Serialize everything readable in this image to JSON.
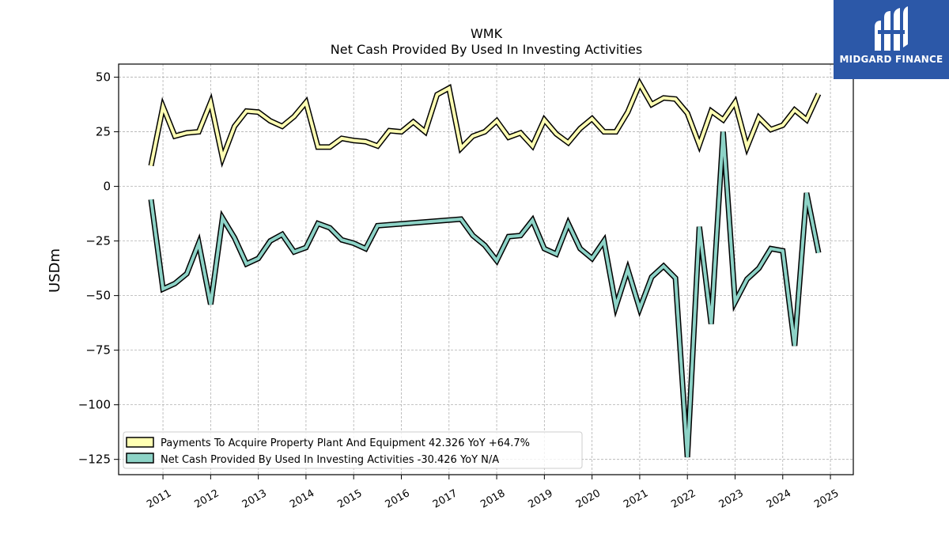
{
  "chart_data": {
    "type": "line",
    "title": "WMK",
    "subtitle": "Net Cash Provided By Used In Investing Activities",
    "xlabel": "",
    "ylabel": "USDm",
    "ylim": [
      -132,
      56
    ],
    "yticks": [
      50,
      25,
      0,
      -25,
      -50,
      -75,
      -100,
      -125
    ],
    "ytick_labels": [
      "50",
      "25",
      "0",
      "−25",
      "−50",
      "−75",
      "−100",
      "−125"
    ],
    "xlim": [
      2010.07,
      2025.48
    ],
    "xticks": [
      2011,
      2012,
      2013,
      2014,
      2015,
      2016,
      2017,
      2018,
      2019,
      2020,
      2021,
      2022,
      2023,
      2024,
      2025
    ],
    "xtick_labels": [
      "2011",
      "2012",
      "2013",
      "2014",
      "2015",
      "2016",
      "2017",
      "2018",
      "2019",
      "2020",
      "2021",
      "2022",
      "2023",
      "2024",
      "2025"
    ],
    "grid": true,
    "legend_position": "lower-left",
    "series": [
      {
        "name": "Payments To Acquire Property Plant And Equipment",
        "legend_label": "Payments To Acquire Property Plant And Equipment  42.326 YoY +64.7%",
        "color": "#ffffb3",
        "x": [
          2010.75,
          2011.0,
          2011.25,
          2011.5,
          2011.75,
          2012.0,
          2012.25,
          2012.5,
          2012.75,
          2013.0,
          2013.25,
          2013.5,
          2013.75,
          2014.0,
          2014.25,
          2014.5,
          2014.75,
          2015.0,
          2015.25,
          2015.5,
          2015.75,
          2016.0,
          2016.25,
          2016.5,
          2016.75,
          2017.0,
          2017.25,
          2017.5,
          2017.75,
          2018.0,
          2018.25,
          2018.5,
          2018.75,
          2019.0,
          2019.25,
          2019.5,
          2019.75,
          2020.0,
          2020.25,
          2020.5,
          2020.75,
          2021.0,
          2021.25,
          2021.5,
          2021.75,
          2022.0,
          2022.25,
          2022.5,
          2022.75,
          2023.0,
          2023.25,
          2023.5,
          2023.75,
          2024.0,
          2024.25,
          2024.5,
          2024.75
        ],
        "values": [
          9.5,
          36.5,
          23,
          24.5,
          25,
          38.5,
          13,
          27.5,
          34.5,
          34,
          30,
          27.5,
          32,
          38.5,
          18,
          18,
          22,
          21,
          20.5,
          18.5,
          25.5,
          25,
          29.5,
          25,
          42,
          45,
          17.5,
          23,
          25,
          30,
          22.5,
          24.5,
          18.5,
          30.5,
          24,
          20,
          26.5,
          31,
          25,
          25,
          34,
          47,
          37.5,
          40.5,
          40,
          33.5,
          19,
          34.5,
          30.5,
          38.5,
          18,
          31.5,
          26,
          28,
          35,
          30.5,
          42.326
        ]
      },
      {
        "name": "Net Cash Provided By Used In Investing Activities",
        "legend_label": "Net Cash Provided By Used In Investing Activities  -30.426 YoY N/A",
        "color": "#8dd3c7",
        "x": [
          2010.75,
          2011.0,
          2011.25,
          2011.5,
          2011.75,
          2012.0,
          2012.25,
          2012.5,
          2012.75,
          2013.0,
          2013.25,
          2013.5,
          2013.75,
          2014.0,
          2014.25,
          2014.5,
          2014.75,
          2015.0,
          2015.25,
          2015.5,
          2017.25,
          2017.5,
          2017.75,
          2018.0,
          2018.25,
          2018.5,
          2018.75,
          2019.0,
          2019.25,
          2019.5,
          2019.75,
          2020.0,
          2020.25,
          2020.5,
          2020.75,
          2021.0,
          2021.25,
          2021.5,
          2021.75,
          2022.0,
          2022.25,
          2022.5,
          2022.75,
          2023.0,
          2023.25,
          2023.5,
          2023.75,
          2024.0,
          2024.25,
          2024.5,
          2024.75
        ],
        "values": [
          -6,
          -47,
          -44.5,
          -40,
          -26,
          -54,
          -14.5,
          -23.5,
          -35.5,
          -33,
          -25,
          -22,
          -30,
          -28,
          -17,
          -19,
          -24.5,
          -26,
          -28.5,
          -18,
          -15,
          -22.5,
          -27,
          -34,
          -23,
          -22.5,
          -15.5,
          -28.5,
          -31,
          -17,
          -28.5,
          -33,
          -25,
          -55,
          -38,
          -56,
          -41.5,
          -36.5,
          -42,
          -124,
          -18.5,
          -63,
          25,
          -53,
          -42.5,
          -37.5,
          -28.5,
          -29.5,
          -73,
          -3,
          -30.426
        ]
      }
    ]
  },
  "logo": {
    "text": "MIDGARD FINANCE",
    "background": "#2c58a8"
  }
}
